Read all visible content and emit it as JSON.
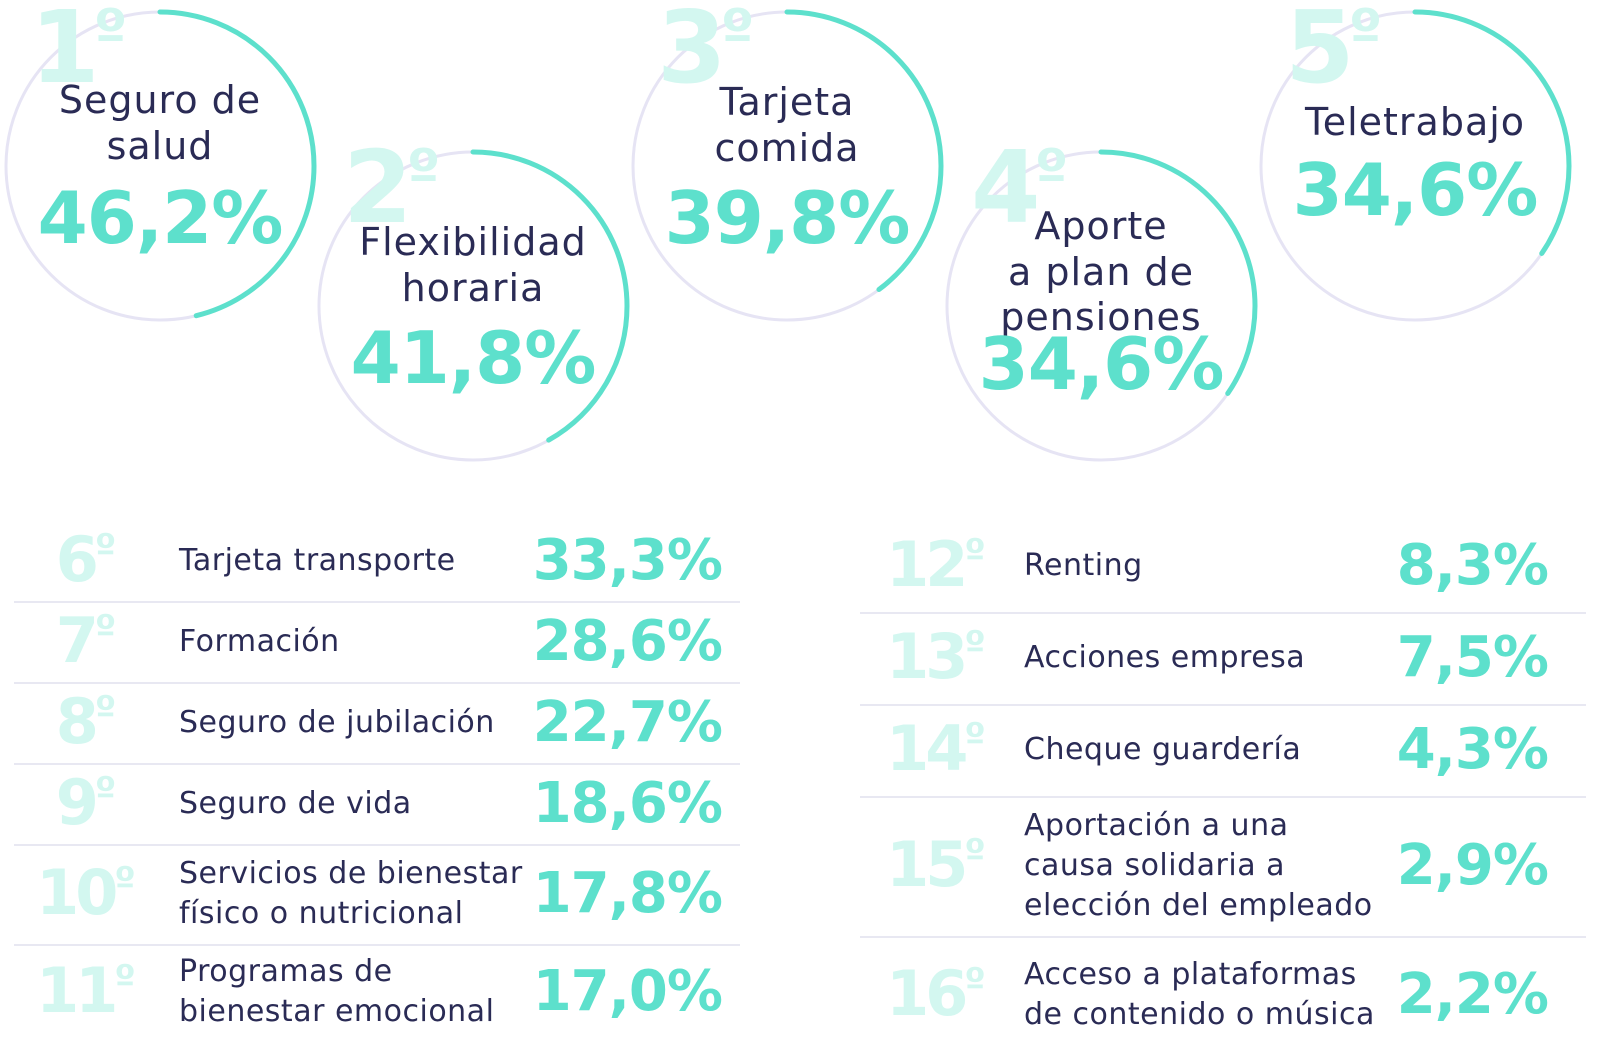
{
  "colors": {
    "accent": "#5de0cc",
    "rank_watermark": "#d3f7f0",
    "text": "#2a2b55",
    "ring_track": "#e6e4f4",
    "divider": "#e8e8f2"
  },
  "chart_data": [
    {
      "type": "radial-progress",
      "items": [
        {
          "rank": "1",
          "ordinal": "º",
          "label_lines": [
            "Seguro de",
            "salud"
          ],
          "value": 46.2,
          "value_label": "46,2%"
        },
        {
          "rank": "2",
          "ordinal": "º",
          "label_lines": [
            "Flexibilidad",
            "horaria"
          ],
          "value": 41.8,
          "value_label": "41,8%"
        },
        {
          "rank": "3",
          "ordinal": "º",
          "label_lines": [
            "Tarjeta",
            "comida"
          ],
          "value": 39.8,
          "value_label": "39,8%"
        },
        {
          "rank": "4",
          "ordinal": "º",
          "label_lines": [
            "Aporte",
            "a plan de",
            "pensiones"
          ],
          "value": 34.6,
          "value_label": "34,6%"
        },
        {
          "rank": "5",
          "ordinal": "º",
          "label_lines": [
            "Teletrabajo"
          ],
          "value": 34.6,
          "value_label": "34,6%"
        }
      ]
    },
    {
      "type": "table",
      "rows": [
        {
          "rank": "6",
          "ordinal": "º",
          "label_lines": [
            "Tarjeta transporte"
          ],
          "value": 33.3,
          "value_label": "33,3%"
        },
        {
          "rank": "7",
          "ordinal": "º",
          "label_lines": [
            "Formación"
          ],
          "value": 28.6,
          "value_label": "28,6%"
        },
        {
          "rank": "8",
          "ordinal": "º",
          "label_lines": [
            "Seguro de jubilación"
          ],
          "value": 22.7,
          "value_label": "22,7%"
        },
        {
          "rank": "9",
          "ordinal": "º",
          "label_lines": [
            "Seguro de vida"
          ],
          "value": 18.6,
          "value_label": "18,6%"
        },
        {
          "rank": "10",
          "ordinal": "º",
          "label_lines": [
            "Servicios de bienestar",
            "físico o nutricional"
          ],
          "value": 17.8,
          "value_label": "17,8%"
        },
        {
          "rank": "11",
          "ordinal": "º",
          "label_lines": [
            "Programas de",
            "bienestar emocional"
          ],
          "value": 17.0,
          "value_label": "17,0%"
        }
      ]
    },
    {
      "type": "table",
      "rows": [
        {
          "rank": "12",
          "ordinal": "º",
          "label_lines": [
            "Renting"
          ],
          "value": 8.3,
          "value_label": "8,3%"
        },
        {
          "rank": "13",
          "ordinal": "º",
          "label_lines": [
            "Acciones empresa"
          ],
          "value": 7.5,
          "value_label": "7,5%"
        },
        {
          "rank": "14",
          "ordinal": "º",
          "label_lines": [
            "Cheque guardería"
          ],
          "value": 4.3,
          "value_label": "4,3%"
        },
        {
          "rank": "15",
          "ordinal": "º",
          "label_lines": [
            "Aportación a una",
            "causa solidaria a",
            "elección del empleado"
          ],
          "value": 2.9,
          "value_label": "2,9%"
        },
        {
          "rank": "16",
          "ordinal": "º",
          "label_lines": [
            "Acceso a plataformas",
            "de contenido o música"
          ],
          "value": 2.2,
          "value_label": "2,2%"
        }
      ]
    }
  ]
}
